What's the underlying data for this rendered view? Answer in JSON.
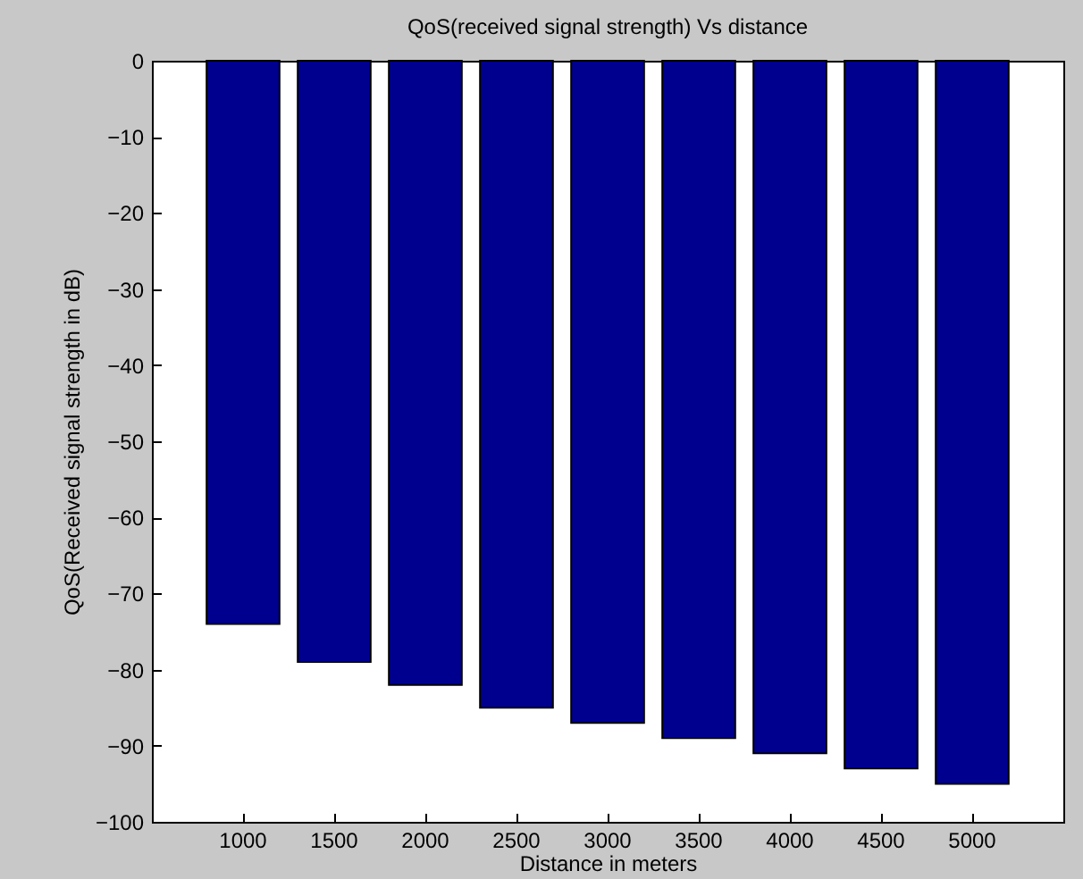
{
  "chart_data": {
    "type": "bar",
    "title": "QoS(received signal strength) Vs distance",
    "xlabel": "Distance in meters",
    "ylabel": "QoS(Received signal strength in dB)",
    "categories": [
      "1000",
      "1500",
      "2000",
      "2500",
      "3000",
      "3500",
      "4000",
      "4500",
      "5000"
    ],
    "values": [
      -74,
      -79,
      -82,
      -85,
      -87,
      -89,
      -91,
      -93,
      -95
    ],
    "color": "#00008f",
    "ylim": [
      -100,
      0
    ],
    "yticks": [
      -100,
      -90,
      -80,
      -70,
      -60,
      -50,
      -40,
      -30,
      -20,
      -10,
      0
    ],
    "grid": false
  }
}
